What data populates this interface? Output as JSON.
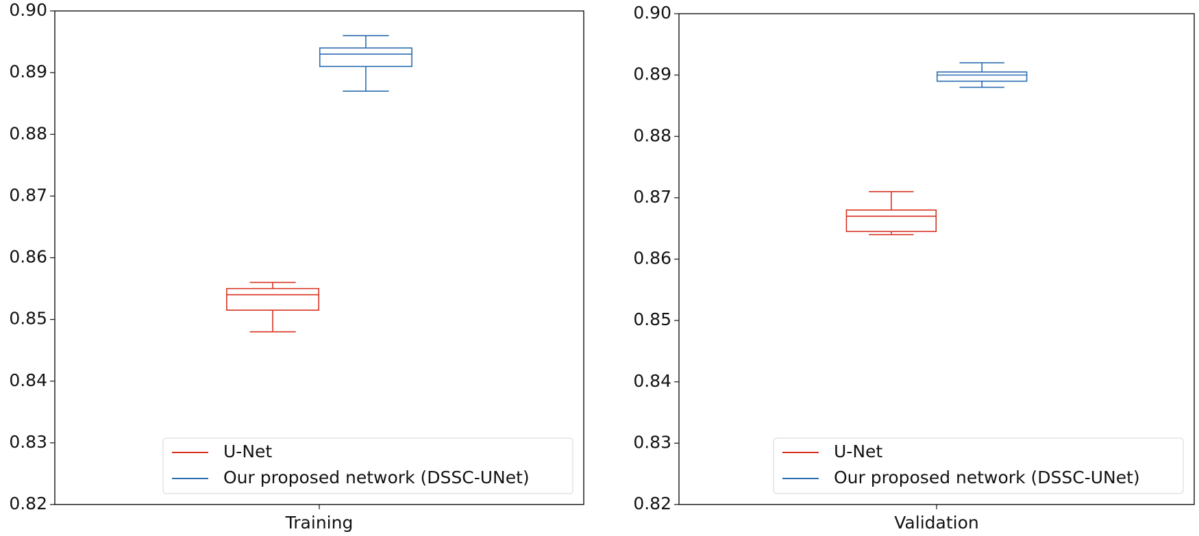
{
  "chart_data": [
    {
      "type": "box",
      "categories": [
        "Training"
      ],
      "ylim": [
        0.82,
        0.9
      ],
      "yticks": [
        0.82,
        0.83,
        0.84,
        0.85,
        0.86,
        0.87,
        0.88,
        0.89,
        {
          "value": 0.9,
          "label": "0.90"
        }
      ],
      "legend": "lower right",
      "series": [
        {
          "name": "U-Net",
          "color": "#d7301f",
          "whisker_low": 0.848,
          "q1": 0.8515,
          "median": 0.854,
          "q3": 0.855,
          "whisker_high": 0.856
        },
        {
          "name": "Our proposed network (DSSC-UNet)",
          "color": "#2b6cb0",
          "whisker_low": 0.887,
          "q1": 0.891,
          "median": 0.893,
          "q3": 0.894,
          "whisker_high": 0.896
        }
      ]
    },
    {
      "type": "box",
      "categories": [
        "Validation"
      ],
      "ylim": [
        0.82,
        0.9
      ],
      "yticks": [
        0.82,
        0.83,
        0.84,
        0.85,
        0.86,
        0.87,
        0.88,
        0.89,
        {
          "value": 0.9,
          "label": "0.90"
        }
      ],
      "legend": "lower right",
      "series": [
        {
          "name": "U-Net",
          "color": "#d7301f",
          "whisker_low": 0.864,
          "q1": 0.8645,
          "median": 0.867,
          "q3": 0.868,
          "whisker_high": 0.871
        },
        {
          "name": "Our proposed network (DSSC-UNet)",
          "color": "#2b6cb0",
          "whisker_low": 0.888,
          "q1": 0.889,
          "median": 0.89,
          "q3": 0.8905,
          "whisker_high": 0.892
        }
      ]
    }
  ]
}
